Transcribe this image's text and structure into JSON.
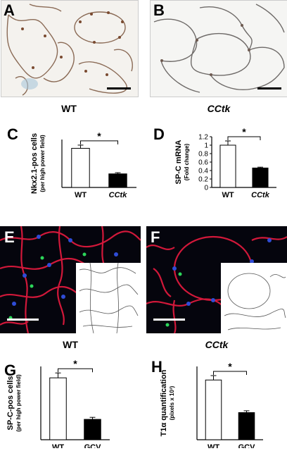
{
  "figure": {
    "panels": {
      "A": {
        "letter": "A",
        "caption": "WT"
      },
      "B": {
        "letter": "B",
        "caption": "CCtk"
      },
      "C": {
        "letter": "C"
      },
      "D": {
        "letter": "D"
      },
      "E": {
        "letter": "E",
        "caption": "WT"
      },
      "F": {
        "letter": "F",
        "caption": "CCtk"
      },
      "G": {
        "letter": "G"
      },
      "H": {
        "letter": "H"
      }
    }
  },
  "chart_data": [
    {
      "id": "C",
      "type": "bar",
      "categories": [
        "WT",
        "CCtk"
      ],
      "category_styles": [
        "normal",
        "italic"
      ],
      "values": [
        4.9,
        1.7
      ],
      "errors": [
        0.4,
        0.15
      ],
      "bar_colors": [
        "#ffffff",
        "#000000"
      ],
      "ylabel": "Nkx2.1-pos cells",
      "ysublabel": "(per high power field)",
      "ylim": [
        0,
        6
      ],
      "yticks": [],
      "significance": "*"
    },
    {
      "id": "D",
      "type": "bar",
      "categories": [
        "WT",
        "CCtk"
      ],
      "category_styles": [
        "normal",
        "italic"
      ],
      "values": [
        1.0,
        0.46
      ],
      "errors": [
        0.1,
        0.02
      ],
      "bar_colors": [
        "#ffffff",
        "#000000"
      ],
      "ylabel": "SP-C mRNA",
      "ysublabel": "(Fold change)",
      "ylim": [
        0,
        1.2
      ],
      "yticks": [
        "0",
        "0.2",
        "0.4",
        "0.6",
        "0.8",
        "1",
        "1.2"
      ],
      "significance": "*"
    },
    {
      "id": "G",
      "type": "bar",
      "categories": [
        "WT",
        "GCV"
      ],
      "category_styles": [
        "normal",
        "normal"
      ],
      "values": [
        7.6,
        2.5
      ],
      "errors": [
        0.6,
        0.25
      ],
      "bar_colors": [
        "#ffffff",
        "#000000"
      ],
      "ylabel": "SP-C-pos cells",
      "ysublabel": "(per high power field)",
      "ylim": [
        0,
        9
      ],
      "yticks": [],
      "significance": "*"
    },
    {
      "id": "H",
      "type": "bar",
      "categories": [
        "WT",
        "GCV"
      ],
      "category_styles": [
        "normal",
        "normal"
      ],
      "values": [
        16.3,
        7.4
      ],
      "errors": [
        1.2,
        0.5
      ],
      "bar_colors": [
        "#ffffff",
        "#000000"
      ],
      "ylabel": "T1α quantification",
      "ysublabel": "(pixels x 10³)",
      "ylim": [
        0,
        20
      ],
      "yticks": [],
      "significance": "*"
    }
  ]
}
